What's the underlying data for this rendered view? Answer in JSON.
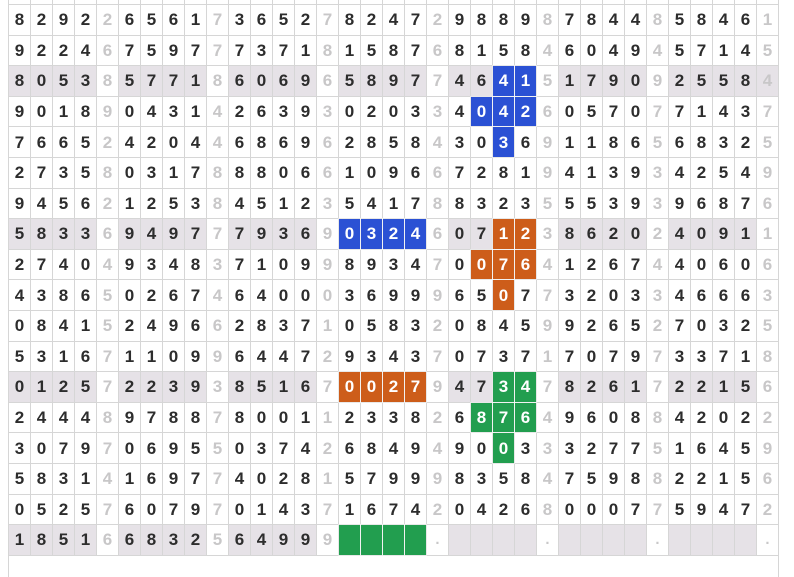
{
  "palette": {
    "blue": "#2b51d4",
    "orange": "#cd5d1a",
    "green": "#229e4f",
    "highlight_row_bg": "#e6e2e7",
    "dark_digit": "#2d2d2d",
    "light_digit": "#c8c7c8",
    "grid_line": "#d6d6d6"
  },
  "grid": {
    "columns": 35,
    "visible_rows": 18,
    "separator_columns": [
      5,
      10,
      15,
      20,
      25,
      30,
      35
    ],
    "highlight_rows": [
      3,
      8,
      13,
      18
    ],
    "highlight_extra_cells": [
      "r3c35"
    ],
    "rows": [
      "82922656173652782472988987844858461",
      "92246759777371815876815846049457145",
      "80538577186069658977464151790925584",
      "90189043142639302033404260570771437",
      "76652420446869628584303691186568325",
      "27358031788806610966728194139342549",
      "94562125384512354178832355539396876",
      "58336949777936903246071238620240911",
      "27404934837109989347007641267440606",
      "43865026746400036999650773203346663",
      "08415249662837105832084599265270325",
      "53167110996447293437073717079733718",
      "01257223938516700279473478261722156",
      "24448978878001123382687649608842022",
      "30797069550374268494900333277516459",
      "58314169774028157999835847598822156",
      "05257607970143716742042680007759472",
      "185166832564999####.____.____.____."
    ],
    "cell_colors": {
      "r3c23": "blue",
      "r3c24": "blue",
      "r4c22": "blue",
      "r4c23": "blue",
      "r4c24": "blue",
      "r5c23": "blue",
      "r8c16": "blue",
      "r8c17": "blue",
      "r8c18": "blue",
      "r8c19": "blue",
      "r8c23": "orange",
      "r8c24": "orange",
      "r9c22": "orange",
      "r9c23": "orange",
      "r9c24": "orange",
      "r10c23": "orange",
      "r13c16": "orange",
      "r13c17": "orange",
      "r13c18": "orange",
      "r13c19": "orange",
      "r13c23": "green",
      "r13c24": "green",
      "r14c22": "green",
      "r14c23": "green",
      "r14c24": "green",
      "r15c23": "green",
      "r18c16": "green",
      "r18c17": "green",
      "r18c18": "green",
      "r18c19": "green"
    }
  }
}
